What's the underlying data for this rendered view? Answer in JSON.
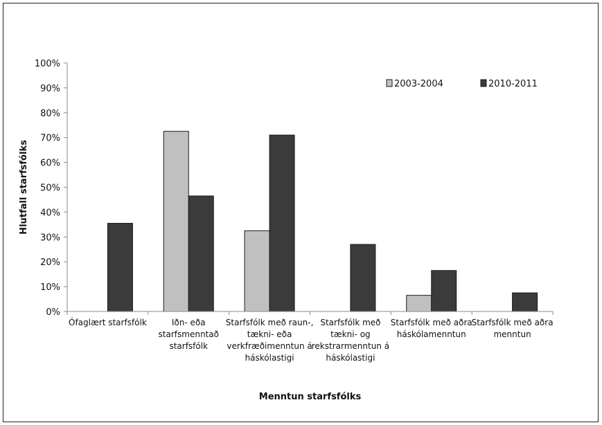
{
  "chart_data": {
    "type": "bar",
    "title": "",
    "xlabel": "Menntun starfsfólks",
    "ylabel": "Hlutfall  starfsfólks",
    "ylim": [
      0,
      100
    ],
    "yticks": [
      "0%",
      "10%",
      "20%",
      "30%",
      "40%",
      "50%",
      "60%",
      "70%",
      "80%",
      "90%",
      "100%"
    ],
    "grid": false,
    "legend_position": "top-right",
    "categories": [
      [
        "Ófaglært starfsfólk"
      ],
      [
        "Iðn- eða",
        "starfsmenntað",
        "starfsfólk"
      ],
      [
        "Starfsfólk með raun-,",
        "tækni- eða",
        "verkfræðimenntun á",
        "háskólastigi"
      ],
      [
        "Starfsfólk með",
        "tækni- og",
        "rekstrarmenntun á",
        "háskólastigi"
      ],
      [
        "Starfsfólk með aðra",
        "háskólamenntun"
      ],
      [
        "Starfsfólk með aðra",
        "menntun"
      ]
    ],
    "series": [
      {
        "name": "2003-2004",
        "color": "#c0c0c0",
        "values": [
          0,
          72.5,
          32.5,
          0,
          6.5,
          0
        ]
      },
      {
        "name": "2010-2011",
        "color": "#3b3b3b",
        "values": [
          35.5,
          46.5,
          71,
          27,
          16.5,
          7.5
        ]
      }
    ]
  }
}
